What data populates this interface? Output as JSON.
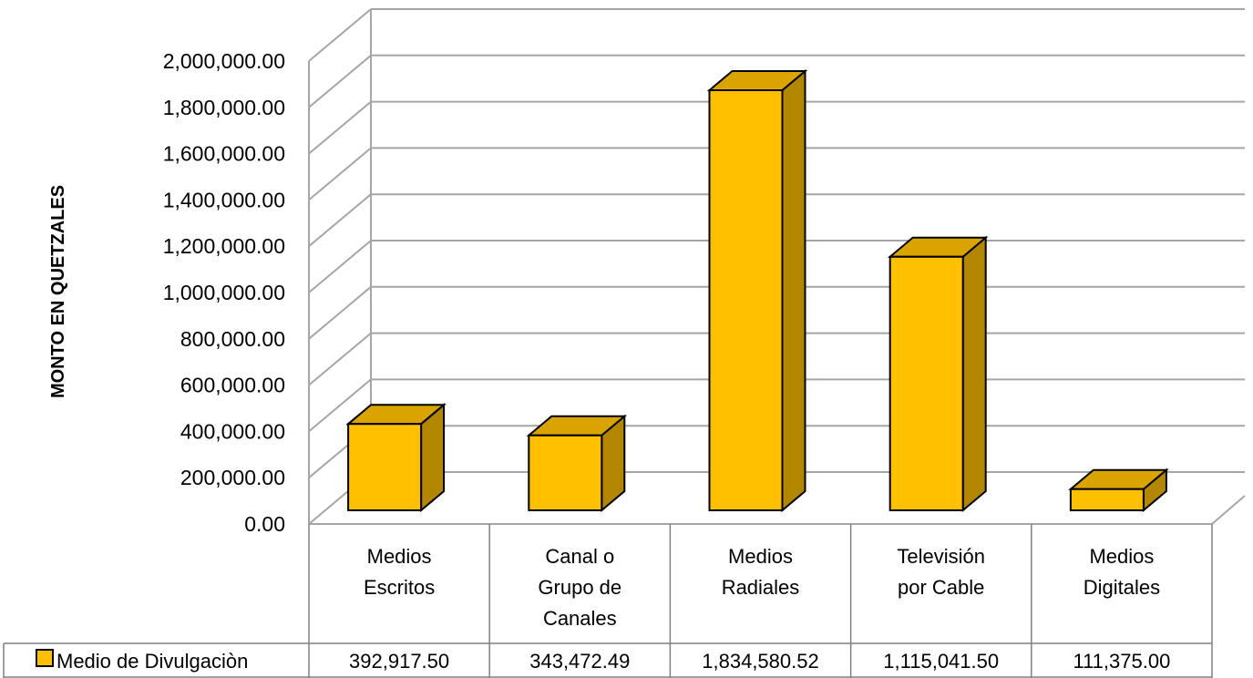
{
  "chart_data": {
    "type": "bar",
    "ylabel": "MONTO  EN QUETZALES",
    "categories": [
      [
        "Medios",
        "Escritos"
      ],
      [
        "Canal o",
        "Grupo de",
        "Canales"
      ],
      [
        "Medios",
        "Radiales"
      ],
      [
        "Televisión",
        "por Cable"
      ],
      [
        "Medios",
        "Digitales"
      ]
    ],
    "series": [
      {
        "name": "Medio de Divulgaciòn",
        "values": [
          392917.5,
          343472.49,
          1834580.52,
          1115041.5,
          111375.0
        ],
        "value_labels": [
          "392,917.50",
          "343,472.49",
          "1,834,580.52",
          "1,115,041.50",
          "111,375.00"
        ]
      }
    ],
    "yticks": [
      "0.00",
      "200,000.00",
      "400,000.00",
      "600,000.00",
      "800,000.00",
      "1,000,000.00",
      "1,200,000.00",
      "1,400,000.00",
      "1,600,000.00",
      "1,800,000.00",
      "2,000,000.00"
    ],
    "ylim": [
      0,
      2000000
    ],
    "grid": true,
    "three_d": true,
    "legend": "data-table",
    "colors": {
      "front": "#FFC000",
      "side": "#B38600",
      "top": "#D9A300",
      "outline": "#000000",
      "grid": "#A6A6A6"
    }
  }
}
